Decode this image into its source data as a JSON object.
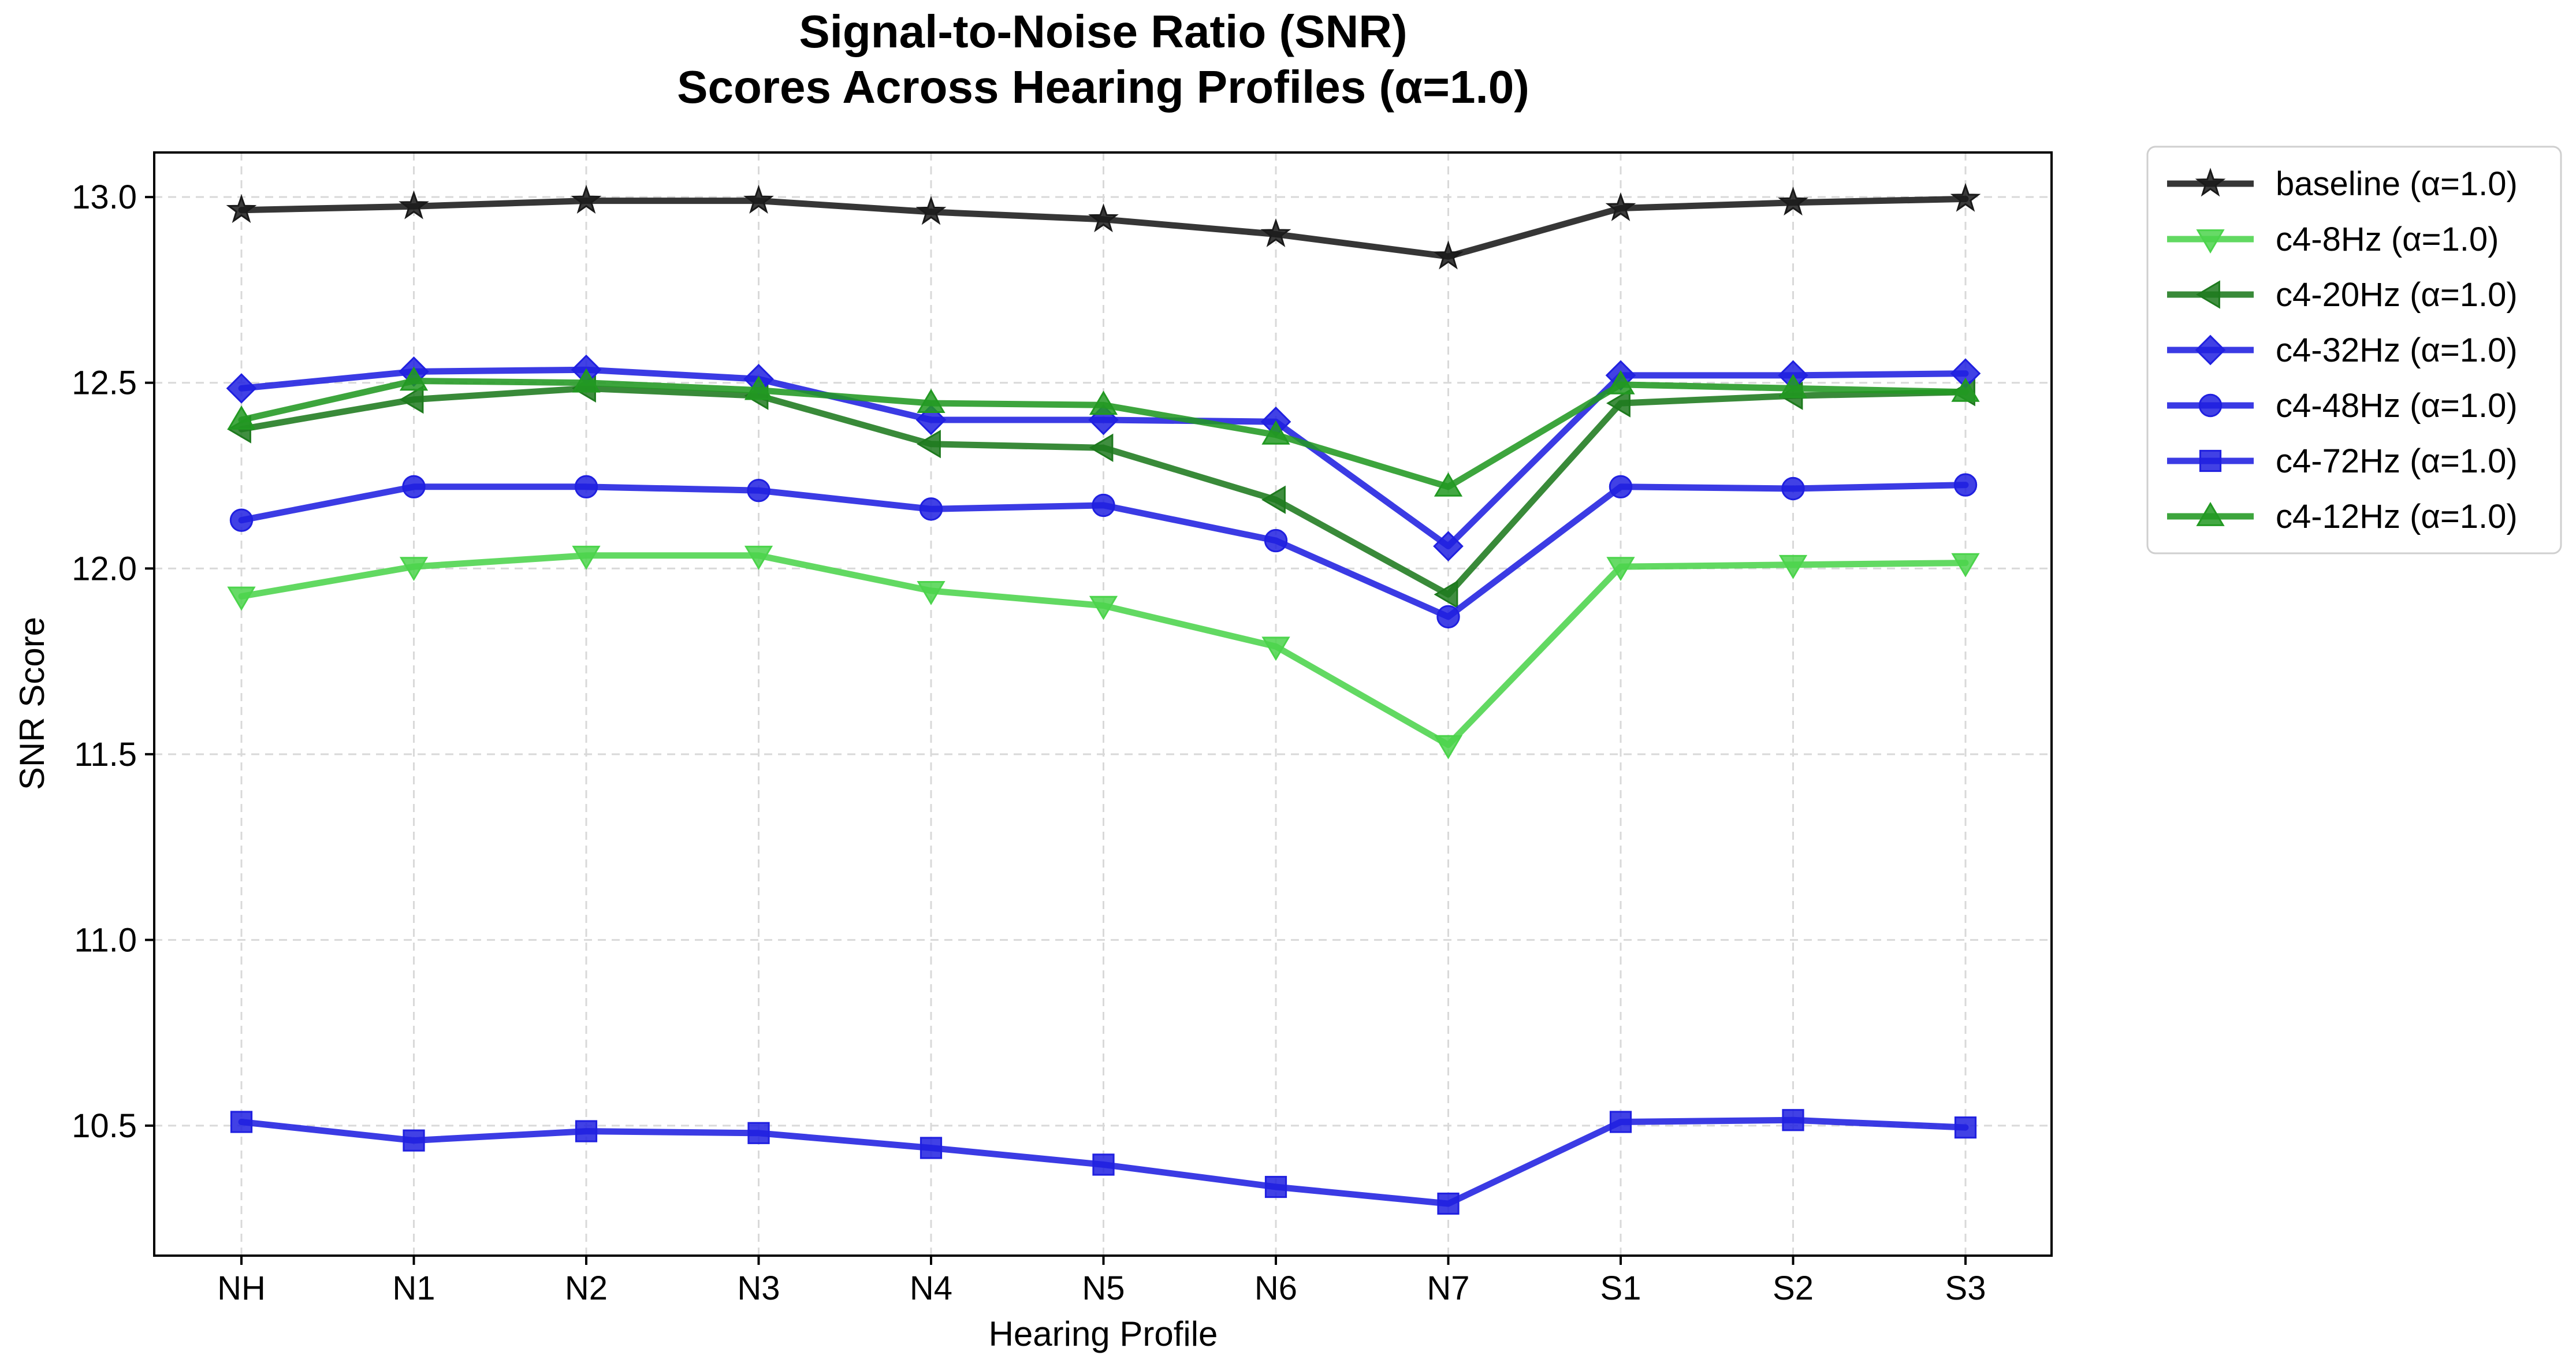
{
  "chart_data": {
    "type": "line",
    "title": "Signal-to-Noise Ratio (SNR)",
    "subtitle": "Scores Across Hearing Profiles (α=1.0)",
    "xlabel": "Hearing Profile",
    "ylabel": "SNR Score",
    "categories": [
      "NH",
      "N1",
      "N2",
      "N3",
      "N4",
      "N5",
      "N6",
      "N7",
      "S1",
      "S2",
      "S3"
    ],
    "ylim": [
      10.15,
      13.12
    ],
    "yticks": [
      "10.5",
      "11.0",
      "11.5",
      "12.0",
      "12.5",
      "13.0"
    ],
    "grid": true,
    "legend_position": "outside-right-top",
    "series": [
      {
        "name": "baseline (α=1.0)",
        "color": "#1a1a1a",
        "marker": "star",
        "values": [
          12.965,
          12.975,
          12.99,
          12.99,
          12.96,
          12.94,
          12.9,
          12.84,
          12.97,
          12.985,
          12.995
        ]
      },
      {
        "name": "c4-8Hz (α=1.0)",
        "color": "#4cd44c",
        "marker": "triangle-down",
        "values": [
          11.925,
          12.005,
          12.035,
          12.035,
          11.94,
          11.9,
          11.79,
          11.525,
          12.005,
          12.01,
          12.015
        ]
      },
      {
        "name": "c4-20Hz (α=1.0)",
        "color": "#1e7a1e",
        "marker": "triangle-left",
        "values": [
          12.375,
          12.455,
          12.485,
          12.465,
          12.335,
          12.325,
          12.185,
          11.93,
          12.445,
          12.465,
          12.475
        ]
      },
      {
        "name": "c4-32Hz (α=1.0)",
        "color": "#2020e0",
        "marker": "diamond",
        "values": [
          12.485,
          12.53,
          12.535,
          12.51,
          12.4,
          12.4,
          12.395,
          12.06,
          12.52,
          12.52,
          12.525
        ]
      },
      {
        "name": "c4-48Hz (α=1.0)",
        "color": "#2020e0",
        "marker": "circle",
        "values": [
          12.13,
          12.22,
          12.22,
          12.21,
          12.16,
          12.17,
          12.075,
          11.87,
          12.22,
          12.215,
          12.225
        ]
      },
      {
        "name": "c4-72Hz (α=1.0)",
        "color": "#2020e0",
        "marker": "square",
        "values": [
          10.51,
          10.46,
          10.485,
          10.48,
          10.44,
          10.395,
          10.335,
          10.29,
          10.51,
          10.515,
          10.495
        ]
      },
      {
        "name": "c4-12Hz (α=1.0)",
        "color": "#229922",
        "marker": "triangle-up",
        "values": [
          12.4,
          12.505,
          12.5,
          12.48,
          12.445,
          12.44,
          12.36,
          12.22,
          12.495,
          12.485,
          12.475
        ]
      }
    ]
  }
}
